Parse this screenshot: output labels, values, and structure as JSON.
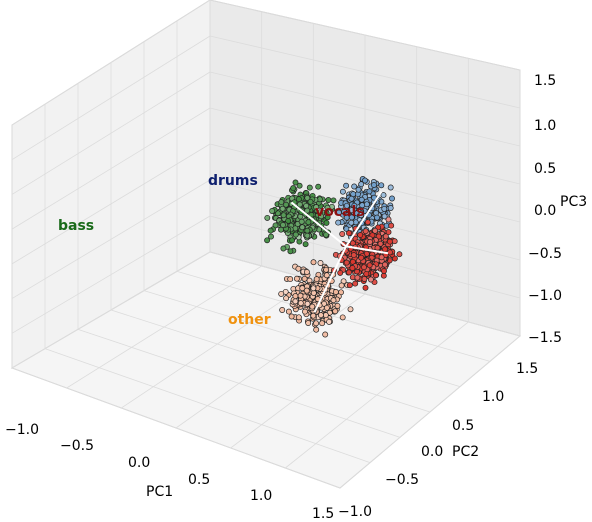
{
  "chart_data": {
    "type": "scatter",
    "projection": "3d",
    "grid": true,
    "title": "",
    "xlabel": "PC1",
    "ylabel": "PC2",
    "zlabel": "PC3",
    "xlim": [
      -1.0,
      1.5
    ],
    "ylim": [
      -1.0,
      1.5
    ],
    "zlim": [
      -1.5,
      1.5
    ],
    "xticks": [
      "−1.0",
      "−0.5",
      "0.0",
      "0.5",
      "1.0",
      "1.5"
    ],
    "yticks": [
      "−1.0",
      "−0.5",
      "0.0",
      "0.5",
      "1.0",
      "1.5"
    ],
    "zticks": [
      "−1.5",
      "−1.0",
      "−0.5",
      "0.0",
      "0.5",
      "1.0",
      "1.5"
    ],
    "clusters": [
      {
        "name": "bass",
        "label_color": "#1a6b1a",
        "point_color": "#3d8a3d",
        "center": [
          -0.8,
          0.2,
          0.1
        ]
      },
      {
        "name": "drums",
        "label_color": "#0d1f6e",
        "point_color": "#6d9cc9",
        "center": [
          0.1,
          0.7,
          0.3
        ]
      },
      {
        "name": "vocals",
        "label_color": "#8b1010",
        "point_color": "#d9342b",
        "center": [
          0.7,
          0.3,
          0.1
        ]
      },
      {
        "name": "other",
        "label_color": "#f0920f",
        "point_color": "#f0b69a",
        "center": [
          0.2,
          -0.3,
          -0.5
        ]
      }
    ]
  }
}
